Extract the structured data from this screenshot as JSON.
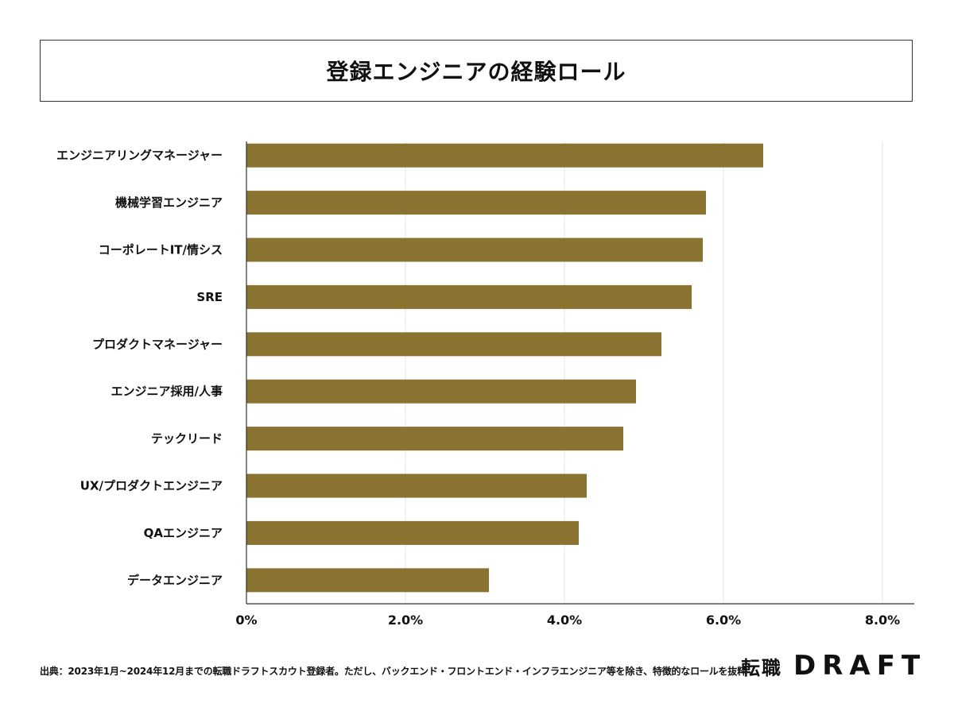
{
  "chart_data": {
    "type": "bar",
    "orientation": "horizontal",
    "title": "登録エンジニアの経験ロール",
    "categories": [
      "エンジニアリングマネージャー",
      "機械学習エンジニア",
      "コーポレートIT/情シス",
      "SRE",
      "プロダクトマネージャー",
      "エンジニア採用/人事",
      "テックリード",
      "UX/プロダクトエンジニア",
      "QAエンジニア",
      "データエンジニア"
    ],
    "values": [
      6.5,
      5.78,
      5.74,
      5.6,
      5.22,
      4.9,
      4.74,
      4.28,
      4.18,
      3.05
    ],
    "xlim": [
      0,
      8.0
    ],
    "xticks": [
      "0%",
      "2.0%",
      "4.0%",
      "6.0%",
      "8.0%"
    ],
    "xtick_values": [
      0,
      2,
      4,
      6,
      8
    ],
    "bar_color": "#8a7231",
    "grid": true
  },
  "footer": {
    "source": "出典：2023年1月~2024年12月までの転職ドラフトスカウト登録者。ただし、バックエンド・フロントエンド・インフラエンジニア等を除き、特徴的なロールを抜粋",
    "logo_kanji": "転職",
    "logo_text": "DRAFT"
  }
}
